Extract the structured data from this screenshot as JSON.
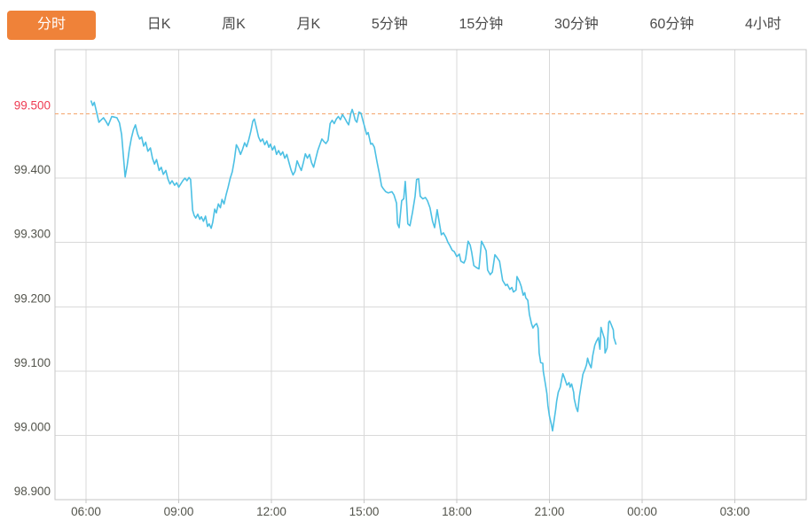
{
  "tabs": [
    {
      "label": "分时",
      "active": true
    },
    {
      "label": "日K",
      "active": false
    },
    {
      "label": "周K",
      "active": false
    },
    {
      "label": "月K",
      "active": false
    },
    {
      "label": "5分钟",
      "active": false
    },
    {
      "label": "15分钟",
      "active": false
    },
    {
      "label": "30分钟",
      "active": false
    },
    {
      "label": "60分钟",
      "active": false
    },
    {
      "label": "4小时",
      "active": false
    }
  ],
  "colors": {
    "accent": "#ef8239",
    "line": "#4cc0e4",
    "reference_line": "#f5a46b",
    "reference_label": "#ee3b52",
    "grid": "#d9d9d9",
    "border": "#c6c6c6",
    "axis_text": "#53544c",
    "tab_text": "#4b4b4b"
  },
  "chart_data": {
    "type": "line",
    "title": "",
    "xlabel": "",
    "ylabel": "",
    "ylim": [
      98.9,
      99.6
    ],
    "grid": true,
    "legend": "none",
    "y_ticks": [
      "98.900",
      "99.000",
      "99.100",
      "99.200",
      "99.300",
      "99.400",
      "99.500"
    ],
    "x_ticks": [
      "06:00",
      "09:00",
      "12:00",
      "15:00",
      "18:00",
      "21:00",
      "00:00",
      "03:00"
    ],
    "reference_line": {
      "value": 99.5,
      "style": "dashed"
    },
    "series": [
      {
        "name": "price",
        "points": [
          [
            "06:10",
            99.52
          ],
          [
            "06:13",
            99.513
          ],
          [
            "06:16",
            99.518
          ],
          [
            "06:21",
            99.501
          ],
          [
            "06:25",
            99.487
          ],
          [
            "06:30",
            99.491
          ],
          [
            "06:34",
            99.494
          ],
          [
            "06:39",
            99.488
          ],
          [
            "06:43",
            99.482
          ],
          [
            "06:50",
            99.496
          ],
          [
            "06:55",
            99.495
          ],
          [
            "07:00",
            99.494
          ],
          [
            "07:05",
            99.486
          ],
          [
            "07:09",
            99.468
          ],
          [
            "07:13",
            99.43
          ],
          [
            "07:16",
            99.402
          ],
          [
            "07:20",
            99.42
          ],
          [
            "07:24",
            99.445
          ],
          [
            "07:28",
            99.462
          ],
          [
            "07:32",
            99.475
          ],
          [
            "07:36",
            99.483
          ],
          [
            "07:40",
            99.469
          ],
          [
            "07:44",
            99.461
          ],
          [
            "07:48",
            99.464
          ],
          [
            "07:52",
            99.45
          ],
          [
            "07:56",
            99.456
          ],
          [
            "08:00",
            99.442
          ],
          [
            "08:05",
            99.447
          ],
          [
            "08:09",
            99.431
          ],
          [
            "08:13",
            99.422
          ],
          [
            "08:17",
            99.429
          ],
          [
            "08:22",
            99.412
          ],
          [
            "08:26",
            99.417
          ],
          [
            "08:30",
            99.406
          ],
          [
            "08:35",
            99.412
          ],
          [
            "08:39",
            99.399
          ],
          [
            "08:43",
            99.391
          ],
          [
            "08:47",
            99.396
          ],
          [
            "08:52",
            99.389
          ],
          [
            "08:56",
            99.393
          ],
          [
            "09:00",
            99.386
          ],
          [
            "09:04",
            99.391
          ],
          [
            "09:08",
            99.396
          ],
          [
            "09:12",
            99.4
          ],
          [
            "09:16",
            99.396
          ],
          [
            "09:20",
            99.401
          ],
          [
            "09:23",
            99.398
          ],
          [
            "09:27",
            99.35
          ],
          [
            "09:30",
            99.342
          ],
          [
            "09:33",
            99.338
          ],
          [
            "09:37",
            99.344
          ],
          [
            "09:41",
            99.336
          ],
          [
            "09:44",
            99.34
          ],
          [
            "09:48",
            99.333
          ],
          [
            "09:52",
            99.341
          ],
          [
            "09:56",
            99.325
          ],
          [
            "09:59",
            99.329
          ],
          [
            "10:03",
            99.322
          ],
          [
            "10:06",
            99.331
          ],
          [
            "10:10",
            99.352
          ],
          [
            "10:13",
            99.346
          ],
          [
            "10:17",
            99.36
          ],
          [
            "10:21",
            99.354
          ],
          [
            "10:24",
            99.367
          ],
          [
            "10:28",
            99.36
          ],
          [
            "10:32",
            99.374
          ],
          [
            "10:36",
            99.386
          ],
          [
            "10:40",
            99.4
          ],
          [
            "10:44",
            99.41
          ],
          [
            "10:48",
            99.428
          ],
          [
            "10:52",
            99.452
          ],
          [
            "10:56",
            99.446
          ],
          [
            "11:00",
            99.437
          ],
          [
            "11:04",
            99.445
          ],
          [
            "11:08",
            99.455
          ],
          [
            "11:12",
            99.449
          ],
          [
            "11:16",
            99.46
          ],
          [
            "11:20",
            99.473
          ],
          [
            "11:24",
            99.489
          ],
          [
            "11:27",
            99.492
          ],
          [
            "11:31",
            99.478
          ],
          [
            "11:35",
            99.464
          ],
          [
            "11:39",
            99.457
          ],
          [
            "11:43",
            99.461
          ],
          [
            "11:47",
            99.452
          ],
          [
            "11:51",
            99.458
          ],
          [
            "11:55",
            99.448
          ],
          [
            "11:58",
            99.453
          ],
          [
            "12:02",
            99.444
          ],
          [
            "12:06",
            99.45
          ],
          [
            "12:10",
            99.437
          ],
          [
            "12:14",
            99.443
          ],
          [
            "12:18",
            99.436
          ],
          [
            "12:22",
            99.441
          ],
          [
            "12:26",
            99.431
          ],
          [
            "12:30",
            99.437
          ],
          [
            "12:34",
            99.425
          ],
          [
            "12:38",
            99.413
          ],
          [
            "12:42",
            99.405
          ],
          [
            "12:46",
            99.411
          ],
          [
            "12:50",
            99.427
          ],
          [
            "12:54",
            99.419
          ],
          [
            "12:58",
            99.412
          ],
          [
            "13:02",
            99.424
          ],
          [
            "13:06",
            99.438
          ],
          [
            "13:10",
            99.431
          ],
          [
            "13:14",
            99.437
          ],
          [
            "13:18",
            99.424
          ],
          [
            "13:22",
            99.417
          ],
          [
            "13:26",
            99.43
          ],
          [
            "13:30",
            99.443
          ],
          [
            "13:34",
            99.452
          ],
          [
            "13:38",
            99.461
          ],
          [
            "13:42",
            99.457
          ],
          [
            "13:46",
            99.454
          ],
          [
            "13:50",
            99.459
          ],
          [
            "13:54",
            99.485
          ],
          [
            "13:58",
            99.49
          ],
          [
            "14:02",
            99.485
          ],
          [
            "14:06",
            99.492
          ],
          [
            "14:10",
            99.496
          ],
          [
            "14:14",
            99.491
          ],
          [
            "14:18",
            99.499
          ],
          [
            "14:22",
            99.494
          ],
          [
            "14:26",
            99.488
          ],
          [
            "14:30",
            99.483
          ],
          [
            "14:34",
            99.5
          ],
          [
            "14:37",
            99.507
          ],
          [
            "14:40",
            99.499
          ],
          [
            "14:43",
            99.49
          ],
          [
            "14:46",
            99.487
          ],
          [
            "14:50",
            99.503
          ],
          [
            "14:54",
            99.501
          ],
          [
            "14:58",
            99.489
          ],
          [
            "15:02",
            99.477
          ],
          [
            "15:05",
            99.468
          ],
          [
            "15:08",
            99.471
          ],
          [
            "15:13",
            99.453
          ],
          [
            "15:16",
            99.454
          ],
          [
            "15:20",
            99.448
          ],
          [
            "15:25",
            99.426
          ],
          [
            "15:30",
            99.406
          ],
          [
            "15:34",
            99.388
          ],
          [
            "15:37",
            99.384
          ],
          [
            "15:42",
            99.379
          ],
          [
            "15:47",
            99.377
          ],
          [
            "15:54",
            99.379
          ],
          [
            "15:58",
            99.374
          ],
          [
            "16:03",
            99.361
          ],
          [
            "16:05",
            99.329
          ],
          [
            "16:08",
            99.323
          ],
          [
            "16:13",
            99.365
          ],
          [
            "16:17",
            99.368
          ],
          [
            "16:20",
            99.395
          ],
          [
            "16:22",
            99.37
          ],
          [
            "16:25",
            99.329
          ],
          [
            "16:29",
            99.326
          ],
          [
            "16:34",
            99.347
          ],
          [
            "16:39",
            99.372
          ],
          [
            "16:42",
            99.398
          ],
          [
            "16:46",
            99.399
          ],
          [
            "16:49",
            99.372
          ],
          [
            "16:54",
            99.368
          ],
          [
            "16:59",
            99.37
          ],
          [
            "17:03",
            99.365
          ],
          [
            "17:08",
            99.354
          ],
          [
            "17:13",
            99.333
          ],
          [
            "17:17",
            99.323
          ],
          [
            "17:22",
            99.351
          ],
          [
            "17:25",
            99.336
          ],
          [
            "17:30",
            99.312
          ],
          [
            "17:34",
            99.315
          ],
          [
            "17:39",
            99.308
          ],
          [
            "17:43",
            99.3
          ],
          [
            "17:46",
            99.296
          ],
          [
            "17:51",
            99.288
          ],
          [
            "17:55",
            99.286
          ],
          [
            "18:00",
            99.278
          ],
          [
            "18:05",
            99.282
          ],
          [
            "18:08",
            99.271
          ],
          [
            "18:14",
            99.268
          ],
          [
            "18:17",
            99.274
          ],
          [
            "18:22",
            99.302
          ],
          [
            "18:26",
            99.296
          ],
          [
            "18:29",
            99.285
          ],
          [
            "18:33",
            99.264
          ],
          [
            "18:38",
            99.261
          ],
          [
            "18:43",
            99.259
          ],
          [
            "18:48",
            99.302
          ],
          [
            "18:52",
            99.296
          ],
          [
            "18:57",
            99.287
          ],
          [
            "19:00",
            99.257
          ],
          [
            "19:05",
            99.25
          ],
          [
            "19:09",
            99.254
          ],
          [
            "19:14",
            99.281
          ],
          [
            "19:17",
            99.278
          ],
          [
            "19:23",
            99.271
          ],
          [
            "19:29",
            99.241
          ],
          [
            "19:35",
            99.233
          ],
          [
            "19:38",
            99.235
          ],
          [
            "19:43",
            99.227
          ],
          [
            "19:47",
            99.23
          ],
          [
            "19:50",
            99.223
          ],
          [
            "19:55",
            99.226
          ],
          [
            "19:57",
            99.247
          ],
          [
            "20:02",
            99.239
          ],
          [
            "20:05",
            99.232
          ],
          [
            "20:09",
            99.218
          ],
          [
            "20:12",
            99.222
          ],
          [
            "20:14",
            99.214
          ],
          [
            "20:18",
            99.21
          ],
          [
            "20:21",
            99.188
          ],
          [
            "20:25",
            99.174
          ],
          [
            "20:28",
            99.167
          ],
          [
            "20:31",
            99.171
          ],
          [
            "20:35",
            99.174
          ],
          [
            "20:38",
            99.167
          ],
          [
            "20:40",
            99.128
          ],
          [
            "20:43",
            99.113
          ],
          [
            "20:47",
            99.112
          ],
          [
            "20:48",
            99.1
          ],
          [
            "20:52",
            99.08
          ],
          [
            "20:55",
            99.065
          ],
          [
            "20:57",
            99.046
          ],
          [
            "21:00",
            99.03
          ],
          [
            "21:04",
            99.016
          ],
          [
            "21:06",
            99.007
          ],
          [
            "21:09",
            99.023
          ],
          [
            "21:12",
            99.04
          ],
          [
            "21:14",
            99.053
          ],
          [
            "21:17",
            99.067
          ],
          [
            "21:21",
            99.075
          ],
          [
            "21:22",
            99.08
          ],
          [
            "21:26",
            99.096
          ],
          [
            "21:29",
            99.09
          ],
          [
            "21:31",
            99.085
          ],
          [
            "21:34",
            99.078
          ],
          [
            "21:38",
            99.082
          ],
          [
            "21:40",
            99.075
          ],
          [
            "21:43",
            99.08
          ],
          [
            "21:47",
            99.067
          ],
          [
            "21:48",
            99.057
          ],
          [
            "21:52",
            99.043
          ],
          [
            "21:55",
            99.037
          ],
          [
            "21:58",
            99.06
          ],
          [
            "22:02",
            99.08
          ],
          [
            "22:05",
            99.095
          ],
          [
            "22:09",
            99.103
          ],
          [
            "22:12",
            99.11
          ],
          [
            "22:14",
            99.12
          ],
          [
            "22:17",
            99.112
          ],
          [
            "22:21",
            99.105
          ],
          [
            "22:24",
            99.124
          ],
          [
            "22:28",
            99.14
          ],
          [
            "22:31",
            99.146
          ],
          [
            "22:35",
            99.152
          ],
          [
            "22:38",
            99.134
          ],
          [
            "22:40",
            99.168
          ],
          [
            "22:43",
            99.16
          ],
          [
            "22:47",
            99.15
          ],
          [
            "22:48",
            99.128
          ],
          [
            "22:52",
            99.136
          ],
          [
            "22:55",
            99.176
          ],
          [
            "22:57",
            99.178
          ],
          [
            "23:00",
            99.172
          ],
          [
            "23:04",
            99.164
          ],
          [
            "23:05",
            99.152
          ],
          [
            "23:09",
            99.142
          ]
        ]
      }
    ]
  }
}
